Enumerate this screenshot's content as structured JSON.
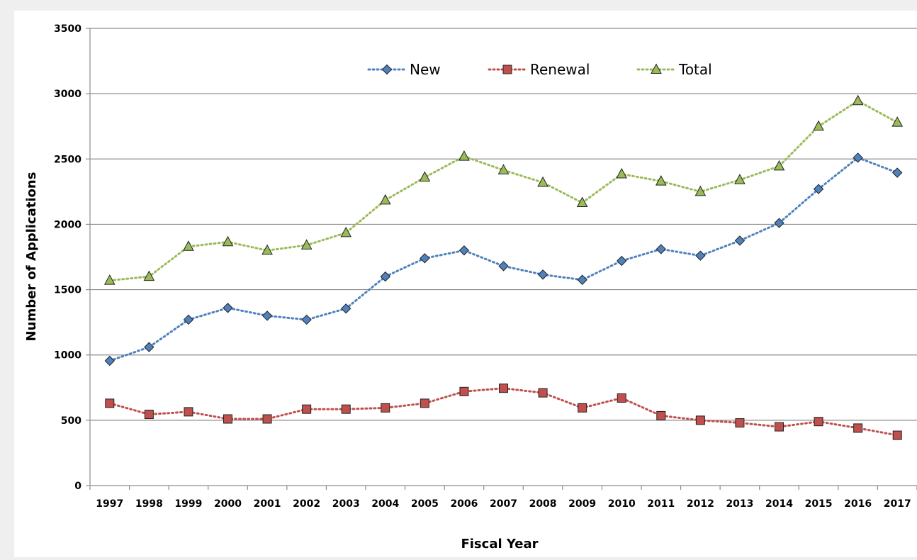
{
  "chart_data": {
    "type": "line",
    "title": "",
    "xlabel": "Fiscal Year",
    "ylabel": "Number of Applications",
    "ylim": [
      0,
      3500
    ],
    "yticks": [
      0,
      500,
      1000,
      1500,
      2000,
      2500,
      3000,
      3500
    ],
    "grid": "horizontal",
    "legend_position": "top-center",
    "categories": [
      "1997",
      "1998",
      "1999",
      "2000",
      "2001",
      "2002",
      "2003",
      "2004",
      "2005",
      "2006",
      "2007",
      "2008",
      "2009",
      "2010",
      "2011",
      "2012",
      "2013",
      "2014",
      "2015",
      "2016",
      "2017"
    ],
    "series": [
      {
        "name": "New",
        "color": "#4f81bd",
        "marker": "diamond",
        "values": [
          955,
          1060,
          1270,
          1360,
          1300,
          1270,
          1355,
          1600,
          1740,
          1800,
          1680,
          1615,
          1575,
          1720,
          1810,
          1760,
          1875,
          2010,
          2270,
          2510,
          2395
        ]
      },
      {
        "name": "Renewal",
        "color": "#c0504d",
        "marker": "square",
        "values": [
          630,
          545,
          565,
          510,
          510,
          585,
          585,
          595,
          630,
          720,
          745,
          710,
          595,
          670,
          535,
          500,
          480,
          450,
          490,
          440,
          385
        ]
      },
      {
        "name": "Total",
        "color": "#9bbb59",
        "marker": "triangle",
        "values": [
          1570,
          1600,
          1830,
          1865,
          1800,
          1840,
          1935,
          2185,
          2360,
          2520,
          2415,
          2320,
          2165,
          2385,
          2330,
          2250,
          2340,
          2445,
          2750,
          2945,
          2780
        ]
      }
    ]
  }
}
